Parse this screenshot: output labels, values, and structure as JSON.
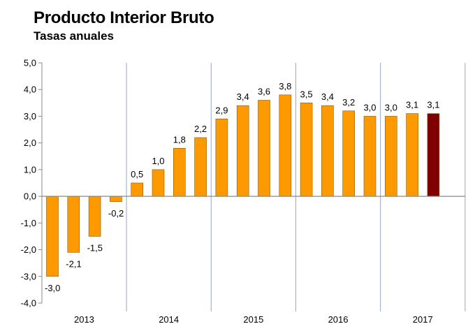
{
  "chart_data": {
    "type": "bar",
    "title": "Producto Interior Bruto",
    "subtitle": "Tasas anuales",
    "xlabel": "",
    "ylabel": "",
    "ylim": [
      -4.0,
      5.0
    ],
    "yticks": [
      5.0,
      4.0,
      3.0,
      2.0,
      1.0,
      0.0,
      -1.0,
      -2.0,
      -3.0,
      -4.0
    ],
    "ytick_labels": [
      "5,0",
      "4,0",
      "3,0",
      "2,0",
      "1,0",
      "0,0",
      "-1,0",
      "-2,0",
      "-3,0",
      "-4,0"
    ],
    "categories": [
      "2013",
      "2014",
      "2015",
      "2016",
      "2017"
    ],
    "bars_per_category": 4,
    "values": [
      -3.0,
      -2.1,
      -1.5,
      -0.2,
      0.5,
      1.0,
      1.8,
      2.2,
      2.9,
      3.4,
      3.6,
      3.8,
      3.5,
      3.4,
      3.2,
      3.0,
      3.0,
      3.1,
      3.1
    ],
    "labels": [
      "-3,0",
      "-2,1",
      "-1,5",
      "-0,2",
      "0,5",
      "1,0",
      "1,8",
      "2,2",
      "2,9",
      "3,4",
      "3,6",
      "3,8",
      "3,5",
      "3,4",
      "3,2",
      "3,0",
      "3,0",
      "3,1",
      "3,1"
    ],
    "colors": {
      "bar": "#FF9900",
      "highlight": "#7F0000",
      "bar_edge": "#8a5a00",
      "grid": "#9aa6c8",
      "axis": "#888888"
    },
    "highlight_index": 18,
    "grid": "vertical separators between years"
  }
}
